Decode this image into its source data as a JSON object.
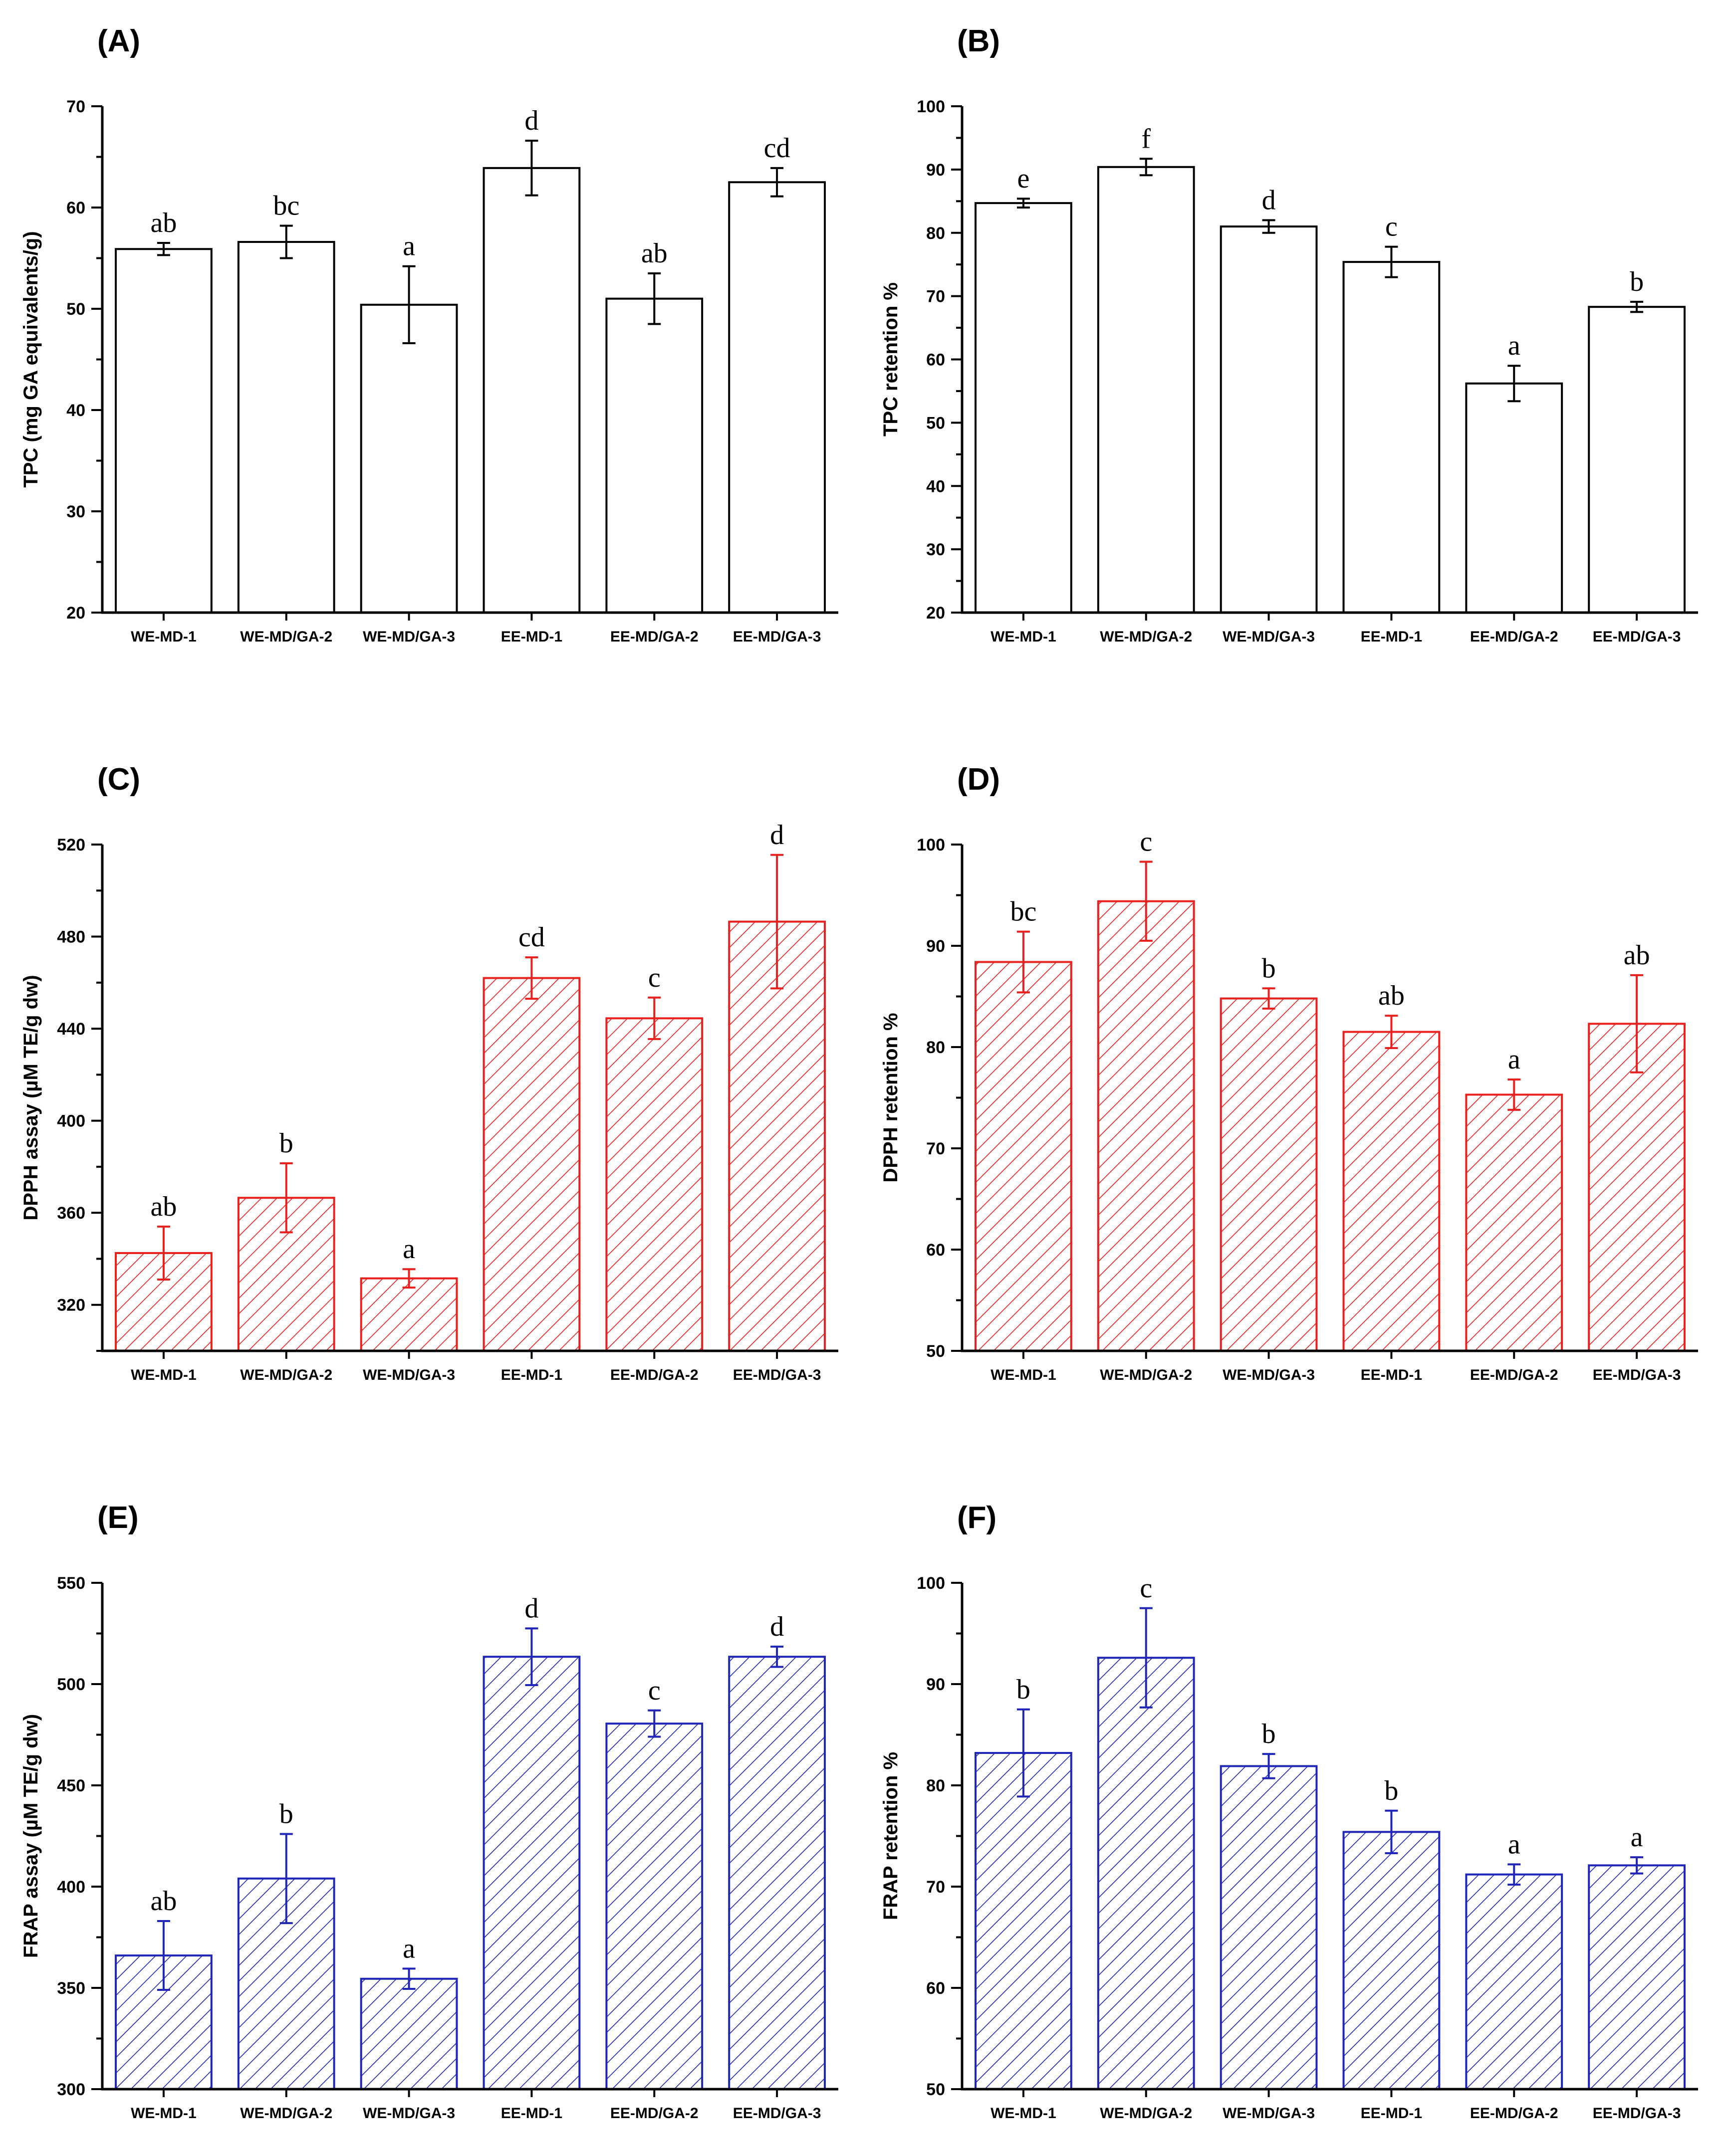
{
  "chart_data": [
    {
      "panel": "(A)",
      "type": "bar",
      "ylabel": "TPC (mg GA equivalents/g)",
      "categories": [
        "WE-MD-1",
        "WE-MD/GA-2",
        "WE-MD/GA-3",
        "EE-MD-1",
        "EE-MD/GA-2",
        "EE-MD/GA-3"
      ],
      "values": [
        55.9,
        56.6,
        50.4,
        63.9,
        51.0,
        62.5
      ],
      "errors": [
        0.6,
        1.6,
        3.8,
        2.7,
        2.5,
        1.4
      ],
      "significance": [
        "ab",
        "bc",
        "a",
        "d",
        "ab",
        "cd"
      ],
      "ylim": [
        20,
        70
      ],
      "yticks": [
        20,
        30,
        40,
        50,
        60,
        70
      ],
      "color": "#000000",
      "fill": "none"
    },
    {
      "panel": "(B)",
      "type": "bar",
      "ylabel": "TPC retention %",
      "categories": [
        "WE-MD-1",
        "WE-MD/GA-2",
        "WE-MD/GA-3",
        "EE-MD-1",
        "EE-MD/GA-2",
        "EE-MD/GA-3"
      ],
      "values": [
        84.7,
        90.4,
        81.0,
        75.4,
        56.2,
        68.3
      ],
      "errors": [
        0.7,
        1.3,
        1.0,
        2.4,
        2.8,
        0.8
      ],
      "significance": [
        "e",
        "f",
        "d",
        "c",
        "a",
        "b"
      ],
      "ylim": [
        20,
        100
      ],
      "yticks": [
        20,
        30,
        40,
        50,
        60,
        70,
        80,
        90,
        100
      ],
      "color": "#000000",
      "fill": "none"
    },
    {
      "panel": "(C)",
      "type": "bar",
      "ylabel": "DPPH assay (µM TE/g dw)",
      "categories": [
        "WE-MD-1",
        "WE-MD/GA-2",
        "WE-MD/GA-3",
        "EE-MD-1",
        "EE-MD/GA-2",
        "EE-MD/GA-3"
      ],
      "values": [
        342.5,
        366.5,
        331.5,
        462.0,
        444.5,
        486.5
      ],
      "errors": [
        11.5,
        15.0,
        4.0,
        9.0,
        9.0,
        29.0
      ],
      "significance": [
        "ab",
        "b",
        "a",
        "cd",
        "c",
        "d"
      ],
      "ylim": [
        300,
        520
      ],
      "yticks": [
        320,
        360,
        400,
        440,
        480,
        520
      ],
      "color": "#e8201e",
      "fill": "hatch"
    },
    {
      "panel": "(D)",
      "type": "bar",
      "ylabel": "DPPH retention %",
      "categories": [
        "WE-MD-1",
        "WE-MD/GA-2",
        "WE-MD/GA-3",
        "EE-MD-1",
        "EE-MD/GA-2",
        "EE-MD/GA-3"
      ],
      "values": [
        88.4,
        94.4,
        84.8,
        81.5,
        75.3,
        82.3
      ],
      "errors": [
        3.0,
        3.9,
        1.0,
        1.6,
        1.5,
        4.8
      ],
      "significance": [
        "bc",
        "c",
        "b",
        "ab",
        "a",
        "ab"
      ],
      "ylim": [
        50,
        100
      ],
      "yticks": [
        50,
        60,
        70,
        80,
        90,
        100
      ],
      "color": "#e8201e",
      "fill": "hatch"
    },
    {
      "panel": "(E)",
      "type": "bar",
      "ylabel": "FRAP assay (µM TE/g dw)",
      "categories": [
        "WE-MD-1",
        "WE-MD/GA-2",
        "WE-MD/GA-3",
        "EE-MD-1",
        "EE-MD/GA-2",
        "EE-MD/GA-3"
      ],
      "values": [
        366.0,
        404.0,
        354.5,
        513.5,
        480.5,
        513.5
      ],
      "errors": [
        17.0,
        22.0,
        5.0,
        14.0,
        6.5,
        5.0
      ],
      "significance": [
        "ab",
        "b",
        "a",
        "d",
        "c",
        "d"
      ],
      "ylim": [
        300,
        550
      ],
      "yticks": [
        300,
        350,
        400,
        450,
        500,
        550
      ],
      "color": "#2027b8",
      "fill": "hatch"
    },
    {
      "panel": "(F)",
      "type": "bar",
      "ylabel": "FRAP retention %",
      "categories": [
        "WE-MD-1",
        "WE-MD/GA-2",
        "WE-MD/GA-3",
        "EE-MD-1",
        "EE-MD/GA-2",
        "EE-MD/GA-3"
      ],
      "values": [
        83.2,
        92.6,
        81.9,
        75.4,
        71.2,
        72.1
      ],
      "errors": [
        4.3,
        4.9,
        1.2,
        2.1,
        1.0,
        0.8
      ],
      "significance": [
        "b",
        "c",
        "b",
        "b",
        "a",
        "a"
      ],
      "ylim": [
        50,
        100
      ],
      "yticks": [
        50,
        60,
        70,
        80,
        90,
        100
      ],
      "color": "#2027b8",
      "fill": "hatch"
    }
  ]
}
